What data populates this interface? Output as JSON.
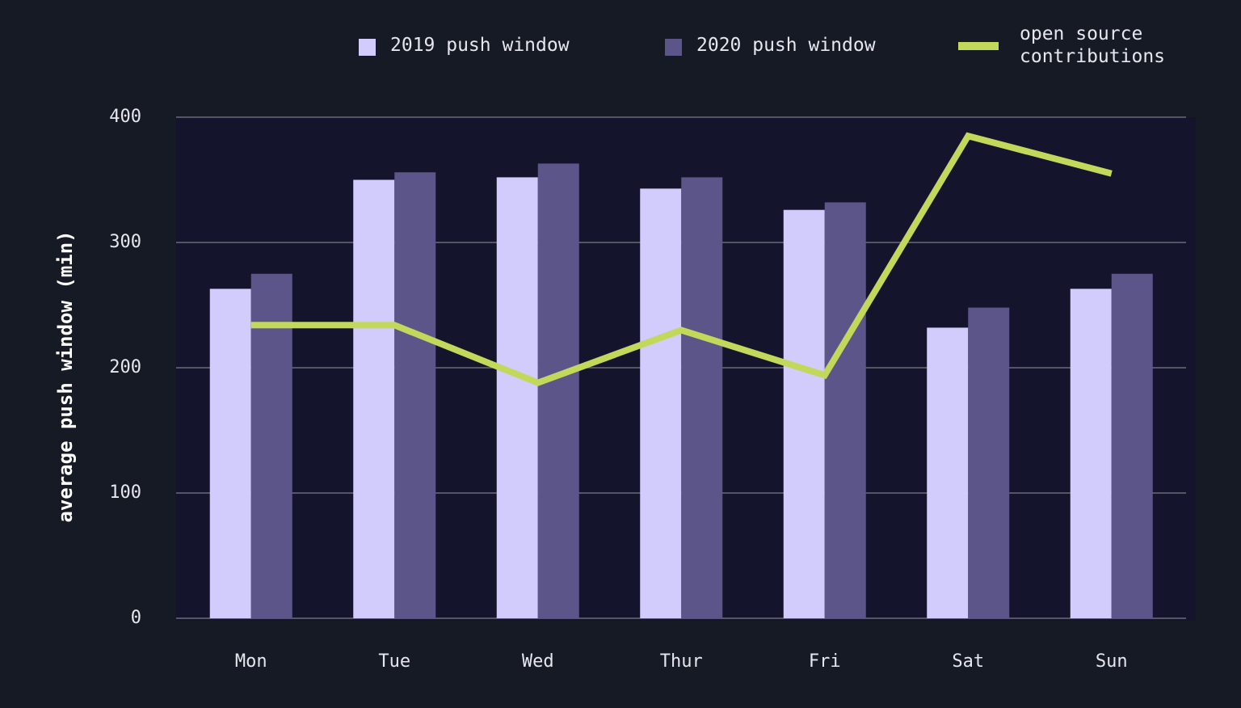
{
  "chart_data": {
    "type": "bar",
    "y_label": "average push window (min)",
    "categories": [
      "Mon",
      "Tue",
      "Wed",
      "Thur",
      "Fri",
      "Sat",
      "Sun"
    ],
    "series": [
      {
        "name": "2019 push window",
        "type": "bar",
        "color": "#d1ccfb",
        "values": [
          263,
          350,
          352,
          343,
          326,
          232,
          263
        ]
      },
      {
        "name": "2020 push window",
        "type": "bar",
        "color": "#5c5589",
        "values": [
          275,
          356,
          363,
          352,
          332,
          248,
          275
        ]
      },
      {
        "name": "open source contributions",
        "type": "line",
        "color": "#c1d85a",
        "values": [
          234,
          234,
          188,
          230,
          194,
          385,
          355
        ]
      }
    ],
    "ylim": [
      0,
      400
    ],
    "yticks": [
      0,
      100,
      200,
      300,
      400
    ],
    "grid": true
  }
}
